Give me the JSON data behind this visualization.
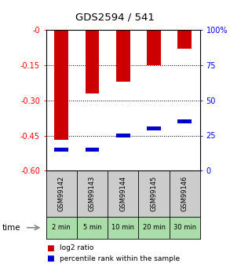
{
  "title": "GDS2594 / 541",
  "samples": [
    "GSM99142",
    "GSM99143",
    "GSM99144",
    "GSM99145",
    "GSM99146"
  ],
  "time_labels": [
    "2 min",
    "5 min",
    "10 min",
    "20 min",
    "30 min"
  ],
  "log2_values": [
    -0.47,
    -0.27,
    -0.22,
    -0.15,
    -0.08
  ],
  "percentile_values": [
    15,
    15,
    25,
    30,
    35
  ],
  "ylim_left": [
    -0.6,
    0.0
  ],
  "ylim_right": [
    0,
    100
  ],
  "yticks_left": [
    0.0,
    -0.15,
    -0.3,
    -0.45,
    -0.6
  ],
  "yticks_right": [
    0,
    25,
    50,
    75,
    100
  ],
  "ytick_labels_left": [
    "-0",
    "-0.15",
    "-0.30",
    "-0.45",
    "-0.60"
  ],
  "ytick_labels_right": [
    "0",
    "25",
    "50",
    "75",
    "100%"
  ],
  "bar_color": "#cc0000",
  "marker_color": "#0000cc",
  "bar_width": 0.45,
  "gray_bg": "#cccccc",
  "green_bg": "#aaddaa",
  "legend_red_label": "log2 ratio",
  "legend_blue_label": "percentile rank within the sample",
  "grid_lines": [
    -0.15,
    -0.3,
    -0.45
  ]
}
